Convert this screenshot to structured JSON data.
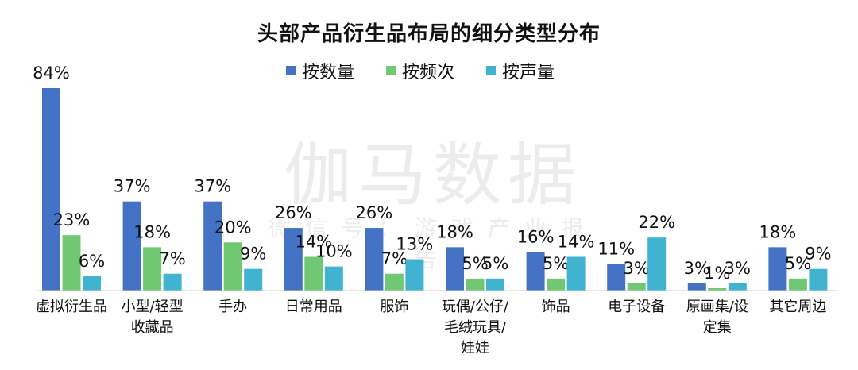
{
  "chart_data": {
    "type": "bar",
    "title": "头部产品衍生品布局的细分类型分布",
    "legend_position": "top",
    "grid": false,
    "ylim": [
      0,
      90
    ],
    "categories": [
      [
        "虚拟衍生品"
      ],
      [
        "小型/轻型",
        "收藏品"
      ],
      [
        "手办"
      ],
      [
        "日常用品"
      ],
      [
        "服饰"
      ],
      [
        "玩偶/公仔/",
        "毛绒玩具/",
        "娃娃"
      ],
      [
        "饰品"
      ],
      [
        "电子设备"
      ],
      [
        "原画集/设",
        "定集"
      ],
      [
        "其它周边"
      ]
    ],
    "series": [
      {
        "name": "按数量",
        "color": "#4472C4",
        "values": [
          84,
          37,
          37,
          26,
          26,
          18,
          16,
          11,
          3,
          18
        ]
      },
      {
        "name": "按频次",
        "color": "#70C972",
        "values": [
          23,
          18,
          20,
          14,
          7,
          5,
          5,
          3,
          1,
          5
        ]
      },
      {
        "name": "按声量",
        "color": "#3FB3CF",
        "values": [
          6,
          7,
          9,
          10,
          13,
          5,
          14,
          22,
          3,
          9
        ]
      }
    ],
    "value_suffix": "%"
  },
  "watermark": {
    "main": "伽马数据",
    "sub": "微信号：游戏产业报告"
  }
}
